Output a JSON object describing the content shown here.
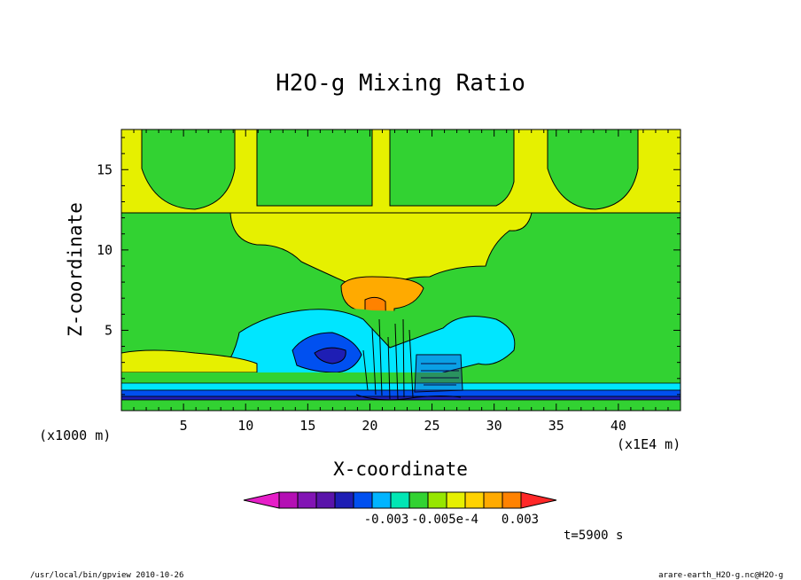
{
  "chart_data": {
    "type": "heatmap",
    "title": "H2O-g Mixing Ratio",
    "xlabel": "X-coordinate",
    "ylabel": "Z-coordinate",
    "x_unit": "(x1E4 m)",
    "y_unit": "(x1000 m)",
    "x_ticks": [
      5,
      10,
      15,
      20,
      25,
      30,
      35,
      40
    ],
    "y_ticks": [
      5,
      10,
      15
    ],
    "xlim": [
      0,
      45
    ],
    "ylim": [
      0,
      17.5
    ],
    "colorbar_labels": [
      "-0.003",
      "-0.005e-4",
      "0.003"
    ],
    "colorbar_colors": [
      "#e61ec8",
      "#b40fb4",
      "#8214b4",
      "#5a14aa",
      "#1e1eb4",
      "#0050f0",
      "#00b4ff",
      "#00e6b4",
      "#32d232",
      "#96e600",
      "#e6f000",
      "#ffd200",
      "#ffaa00",
      "#ff8200",
      "#ff2828"
    ],
    "time_label": "t=5900 s"
  },
  "footer": {
    "left": "/usr/local/bin/gpview  2010-10-26",
    "right": "arare-earth_H2O-g.nc@H2O-g"
  }
}
